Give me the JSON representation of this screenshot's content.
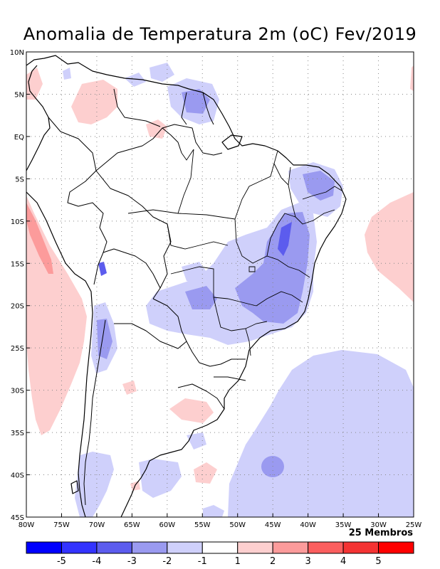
{
  "title": "Anomalia de Temperatura 2m (oC) Fev/2019",
  "members_label": "25 Membros",
  "map": {
    "lon_ticks": [
      "80W",
      "75W",
      "70W",
      "65W",
      "60W",
      "55W",
      "50W",
      "45W",
      "40W",
      "35W",
      "30W",
      "25W"
    ],
    "lat_ticks": [
      "10N",
      "5N",
      "EQ",
      "5S",
      "10S",
      "15S",
      "20S",
      "25S",
      "30S",
      "35S",
      "40S",
      "45S"
    ]
  },
  "colorbar": {
    "labels": [
      "-5",
      "-4",
      "-3",
      "-2",
      "-1",
      "1",
      "2",
      "3",
      "4",
      "5"
    ],
    "colors": [
      "#0000ff",
      "#3333ff",
      "#5c5cee",
      "#9a9af0",
      "#cfd0fb",
      "#ffffff",
      "#fdcfcf",
      "#fc9b9b",
      "#fb5e5e",
      "#f43333",
      "#ff0000"
    ]
  },
  "anomaly_colors": {
    "minus1": "#cfd0fb",
    "minus2": "#9a9af0",
    "minus3": "#5c5cee",
    "minus4": "#3333ff",
    "plus1": "#fdcfcf",
    "plus2": "#fc9b9b",
    "plus3": "#fb5e5e"
  }
}
